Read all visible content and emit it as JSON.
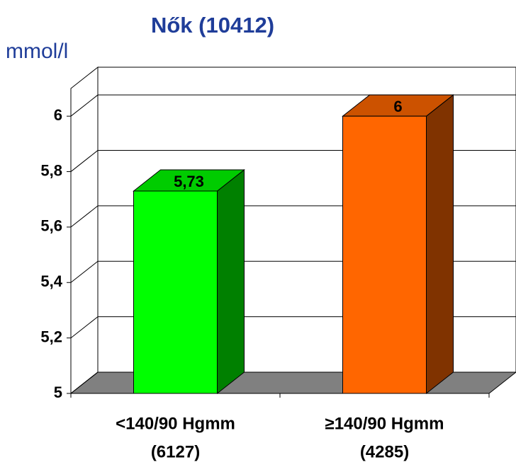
{
  "chart_data": {
    "type": "bar3d",
    "title": "Nők (10412)",
    "y_label": "mmol/l",
    "categories": [
      [
        "<140/90 Hgmm",
        "(6127)"
      ],
      [
        "≥140/90 Hgmm",
        "(4285)"
      ]
    ],
    "values": [
      5.73,
      6
    ],
    "value_labels": [
      "5,73",
      "6"
    ],
    "colors": [
      "#00ff00",
      "#ff6600"
    ],
    "ylim": [
      5,
      6.1
    ],
    "yticks": [
      5,
      {
        "value": 5.2,
        "label": "5,2"
      },
      {
        "value": 5.4,
        "label": "5,4"
      },
      {
        "value": 5.6,
        "label": "5,6"
      },
      {
        "value": 5.8,
        "label": "5,8"
      },
      6
    ],
    "grid": true
  }
}
